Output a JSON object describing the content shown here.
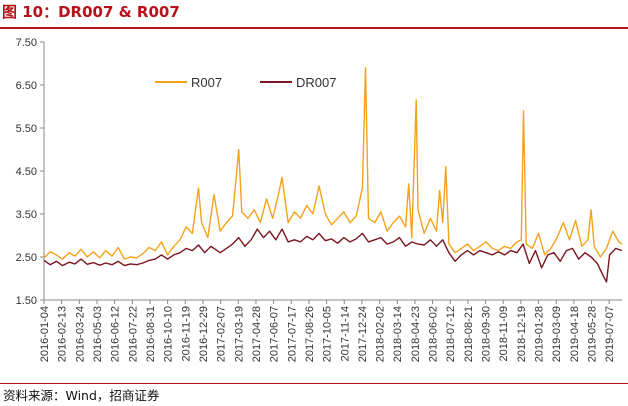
{
  "header": {
    "title": "图 10：DR007 & R007"
  },
  "footer": {
    "source": "资料来源：Wind，招商证券"
  },
  "chart_data": {
    "type": "line",
    "title": "图 10：DR007 & R007",
    "xlabel": "",
    "ylabel": "",
    "ylim": [
      1.5,
      7.5
    ],
    "yticks": [
      "1.50",
      "2.50",
      "3.50",
      "4.50",
      "5.50",
      "6.50",
      "7.50"
    ],
    "xlim": [
      "2016-01-04",
      "2019-08-05"
    ],
    "xticks": [
      "2016-01-04",
      "2016-02-13",
      "2016-03-24",
      "2016-05-03",
      "2016-06-12",
      "2016-07-22",
      "2016-08-31",
      "2016-10-10",
      "2016-11-19",
      "2016-12-29",
      "2017-02-07",
      "2017-03-19",
      "2017-04-28",
      "2017-06-07",
      "2017-07-17",
      "2017-08-26",
      "2017-10-05",
      "2017-11-14",
      "2017-12-24",
      "2018-02-02",
      "2018-03-14",
      "2018-04-23",
      "2018-06-02",
      "2018-07-12",
      "2018-08-21",
      "2018-09-30",
      "2018-11-09",
      "2018-12-19",
      "2019-01-28",
      "2019-03-09",
      "2019-04-18",
      "2019-05-28",
      "2019-07-07"
    ],
    "grid": false,
    "legend": "top-left",
    "series": [
      {
        "name": "R007",
        "color": "#f5a21b",
        "points": [
          [
            "2016-01-04",
            2.48
          ],
          [
            "2016-01-18",
            2.62
          ],
          [
            "2016-02-01",
            2.55
          ],
          [
            "2016-02-15",
            2.45
          ],
          [
            "2016-03-01",
            2.6
          ],
          [
            "2016-03-14",
            2.52
          ],
          [
            "2016-03-28",
            2.68
          ],
          [
            "2016-04-11",
            2.5
          ],
          [
            "2016-04-25",
            2.62
          ],
          [
            "2016-05-09",
            2.48
          ],
          [
            "2016-05-23",
            2.65
          ],
          [
            "2016-06-06",
            2.52
          ],
          [
            "2016-06-20",
            2.72
          ],
          [
            "2016-07-04",
            2.45
          ],
          [
            "2016-07-18",
            2.5
          ],
          [
            "2016-08-01",
            2.48
          ],
          [
            "2016-08-15",
            2.58
          ],
          [
            "2016-08-29",
            2.72
          ],
          [
            "2016-09-12",
            2.65
          ],
          [
            "2016-09-26",
            2.85
          ],
          [
            "2016-10-10",
            2.55
          ],
          [
            "2016-10-24",
            2.75
          ],
          [
            "2016-11-07",
            2.9
          ],
          [
            "2016-11-21",
            3.2
          ],
          [
            "2016-12-05",
            3.05
          ],
          [
            "2016-12-12",
            3.6
          ],
          [
            "2016-12-19",
            4.1
          ],
          [
            "2016-12-26",
            3.3
          ],
          [
            "2017-01-09",
            2.95
          ],
          [
            "2017-01-23",
            3.95
          ],
          [
            "2017-02-06",
            3.1
          ],
          [
            "2017-02-20",
            3.3
          ],
          [
            "2017-03-06",
            3.45
          ],
          [
            "2017-03-13",
            4.2
          ],
          [
            "2017-03-20",
            5.0
          ],
          [
            "2017-03-27",
            3.55
          ],
          [
            "2017-04-10",
            3.4
          ],
          [
            "2017-04-24",
            3.6
          ],
          [
            "2017-05-08",
            3.3
          ],
          [
            "2017-05-22",
            3.85
          ],
          [
            "2017-06-05",
            3.4
          ],
          [
            "2017-06-19",
            4.0
          ],
          [
            "2017-06-26",
            4.35
          ],
          [
            "2017-07-10",
            3.3
          ],
          [
            "2017-07-24",
            3.55
          ],
          [
            "2017-08-07",
            3.4
          ],
          [
            "2017-08-21",
            3.7
          ],
          [
            "2017-09-04",
            3.5
          ],
          [
            "2017-09-18",
            4.15
          ],
          [
            "2017-10-02",
            3.5
          ],
          [
            "2017-10-16",
            3.25
          ],
          [
            "2017-10-30",
            3.4
          ],
          [
            "2017-11-13",
            3.55
          ],
          [
            "2017-11-27",
            3.3
          ],
          [
            "2017-12-11",
            3.45
          ],
          [
            "2017-12-25",
            4.1
          ],
          [
            "2018-01-01",
            6.9
          ],
          [
            "2018-01-08",
            3.4
          ],
          [
            "2018-01-22",
            3.3
          ],
          [
            "2018-02-05",
            3.55
          ],
          [
            "2018-02-19",
            3.1
          ],
          [
            "2018-03-05",
            3.3
          ],
          [
            "2018-03-19",
            3.45
          ],
          [
            "2018-04-02",
            3.2
          ],
          [
            "2018-04-09",
            4.2
          ],
          [
            "2018-04-16",
            2.95
          ],
          [
            "2018-04-26",
            6.15
          ],
          [
            "2018-04-30",
            3.6
          ],
          [
            "2018-05-14",
            3.05
          ],
          [
            "2018-05-28",
            3.4
          ],
          [
            "2018-06-11",
            3.1
          ],
          [
            "2018-06-18",
            4.05
          ],
          [
            "2018-06-25",
            3.3
          ],
          [
            "2018-07-02",
            4.6
          ],
          [
            "2018-07-09",
            2.8
          ],
          [
            "2018-07-23",
            2.6
          ],
          [
            "2018-08-06",
            2.7
          ],
          [
            "2018-08-20",
            2.8
          ],
          [
            "2018-09-03",
            2.65
          ],
          [
            "2018-09-17",
            2.75
          ],
          [
            "2018-10-01",
            2.85
          ],
          [
            "2018-10-15",
            2.7
          ],
          [
            "2018-10-29",
            2.65
          ],
          [
            "2018-11-12",
            2.75
          ],
          [
            "2018-11-26",
            2.7
          ],
          [
            "2018-12-10",
            2.85
          ],
          [
            "2018-12-20",
            2.9
          ],
          [
            "2018-12-25",
            5.9
          ],
          [
            "2018-12-31",
            2.8
          ],
          [
            "2019-01-14",
            2.7
          ],
          [
            "2019-01-28",
            3.05
          ],
          [
            "2019-02-11",
            2.55
          ],
          [
            "2019-02-25",
            2.7
          ],
          [
            "2019-03-11",
            2.95
          ],
          [
            "2019-03-25",
            3.3
          ],
          [
            "2019-04-08",
            2.9
          ],
          [
            "2019-04-22",
            3.35
          ],
          [
            "2019-05-06",
            2.75
          ],
          [
            "2019-05-20",
            2.9
          ],
          [
            "2019-05-27",
            3.6
          ],
          [
            "2019-06-03",
            2.75
          ],
          [
            "2019-06-17",
            2.5
          ],
          [
            "2019-07-01",
            2.7
          ],
          [
            "2019-07-15",
            3.1
          ],
          [
            "2019-07-29",
            2.85
          ],
          [
            "2019-08-05",
            2.8
          ]
        ]
      },
      {
        "name": "DR007",
        "color": "#7a1420",
        "points": [
          [
            "2016-01-04",
            2.42
          ],
          [
            "2016-01-18",
            2.32
          ],
          [
            "2016-02-01",
            2.4
          ],
          [
            "2016-02-15",
            2.3
          ],
          [
            "2016-03-01",
            2.38
          ],
          [
            "2016-03-14",
            2.34
          ],
          [
            "2016-03-28",
            2.45
          ],
          [
            "2016-04-11",
            2.33
          ],
          [
            "2016-04-25",
            2.37
          ],
          [
            "2016-05-09",
            2.31
          ],
          [
            "2016-05-23",
            2.36
          ],
          [
            "2016-06-06",
            2.32
          ],
          [
            "2016-06-20",
            2.4
          ],
          [
            "2016-07-04",
            2.3
          ],
          [
            "2016-07-18",
            2.34
          ],
          [
            "2016-08-01",
            2.32
          ],
          [
            "2016-08-15",
            2.36
          ],
          [
            "2016-08-29",
            2.42
          ],
          [
            "2016-09-12",
            2.45
          ],
          [
            "2016-09-26",
            2.55
          ],
          [
            "2016-10-10",
            2.45
          ],
          [
            "2016-10-24",
            2.55
          ],
          [
            "2016-11-07",
            2.6
          ],
          [
            "2016-11-21",
            2.7
          ],
          [
            "2016-12-05",
            2.65
          ],
          [
            "2016-12-19",
            2.78
          ],
          [
            "2017-01-02",
            2.6
          ],
          [
            "2017-01-16",
            2.75
          ],
          [
            "2017-02-06",
            2.6
          ],
          [
            "2017-02-20",
            2.7
          ],
          [
            "2017-03-06",
            2.8
          ],
          [
            "2017-03-20",
            2.95
          ],
          [
            "2017-04-03",
            2.75
          ],
          [
            "2017-04-17",
            2.9
          ],
          [
            "2017-05-01",
            3.15
          ],
          [
            "2017-05-15",
            2.95
          ],
          [
            "2017-05-29",
            3.1
          ],
          [
            "2017-06-12",
            2.9
          ],
          [
            "2017-06-26",
            3.15
          ],
          [
            "2017-07-10",
            2.85
          ],
          [
            "2017-07-24",
            2.9
          ],
          [
            "2017-08-07",
            2.85
          ],
          [
            "2017-08-21",
            2.98
          ],
          [
            "2017-09-04",
            2.9
          ],
          [
            "2017-09-18",
            3.05
          ],
          [
            "2017-10-02",
            2.88
          ],
          [
            "2017-10-16",
            2.92
          ],
          [
            "2017-10-30",
            2.82
          ],
          [
            "2017-11-13",
            2.95
          ],
          [
            "2017-11-27",
            2.85
          ],
          [
            "2017-12-11",
            2.92
          ],
          [
            "2017-12-25",
            3.05
          ],
          [
            "2018-01-08",
            2.85
          ],
          [
            "2018-01-22",
            2.9
          ],
          [
            "2018-02-05",
            2.95
          ],
          [
            "2018-02-19",
            2.8
          ],
          [
            "2018-03-05",
            2.85
          ],
          [
            "2018-03-19",
            2.95
          ],
          [
            "2018-04-02",
            2.75
          ],
          [
            "2018-04-16",
            2.85
          ],
          [
            "2018-04-30",
            2.8
          ],
          [
            "2018-05-14",
            2.78
          ],
          [
            "2018-05-28",
            2.9
          ],
          [
            "2018-06-11",
            2.75
          ],
          [
            "2018-06-25",
            2.9
          ],
          [
            "2018-07-09",
            2.6
          ],
          [
            "2018-07-23",
            2.4
          ],
          [
            "2018-08-06",
            2.55
          ],
          [
            "2018-08-20",
            2.65
          ],
          [
            "2018-09-03",
            2.55
          ],
          [
            "2018-09-17",
            2.65
          ],
          [
            "2018-10-01",
            2.6
          ],
          [
            "2018-10-15",
            2.55
          ],
          [
            "2018-10-29",
            2.62
          ],
          [
            "2018-11-12",
            2.55
          ],
          [
            "2018-11-26",
            2.65
          ],
          [
            "2018-12-10",
            2.6
          ],
          [
            "2018-12-24",
            2.8
          ],
          [
            "2019-01-07",
            2.35
          ],
          [
            "2019-01-21",
            2.65
          ],
          [
            "2019-02-04",
            2.25
          ],
          [
            "2019-02-18",
            2.55
          ],
          [
            "2019-03-04",
            2.6
          ],
          [
            "2019-03-18",
            2.4
          ],
          [
            "2019-04-01",
            2.65
          ],
          [
            "2019-04-15",
            2.7
          ],
          [
            "2019-04-29",
            2.45
          ],
          [
            "2019-05-13",
            2.6
          ],
          [
            "2019-05-27",
            2.5
          ],
          [
            "2019-06-10",
            2.35
          ],
          [
            "2019-06-24",
            2.05
          ],
          [
            "2019-07-01",
            1.92
          ],
          [
            "2019-07-08",
            2.55
          ],
          [
            "2019-07-22",
            2.7
          ],
          [
            "2019-08-05",
            2.65
          ]
        ]
      }
    ]
  }
}
